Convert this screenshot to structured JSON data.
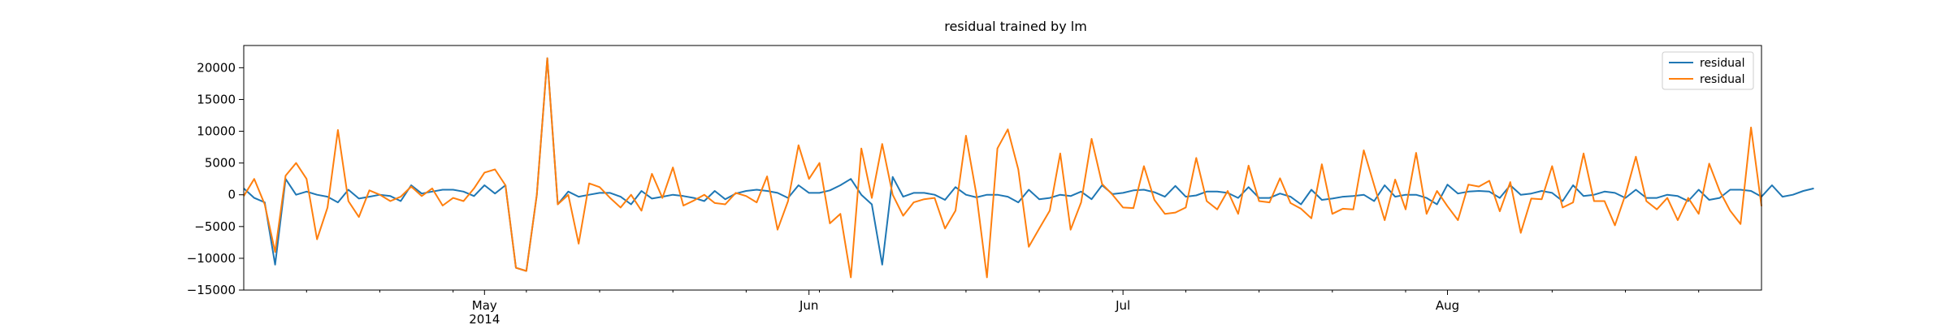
{
  "chart_data": {
    "type": "line",
    "title": "residual trained by lm",
    "xlabel": "",
    "ylabel": "",
    "xlim": [
      "2014-04-08",
      "2014-08-31"
    ],
    "ylim": [
      -15000,
      23500
    ],
    "yticks": [
      -15000,
      -10000,
      -5000,
      0,
      5000,
      10000,
      15000,
      20000
    ],
    "ytick_labels": [
      "−15000",
      "−10000",
      "−5000",
      "0",
      "5000",
      "10000",
      "15000",
      "20000"
    ],
    "xticks_major": [
      {
        "date": "2014-05-01",
        "label": "May",
        "sublabel": "2014"
      },
      {
        "date": "2014-06-01",
        "label": "Jun",
        "sublabel": ""
      },
      {
        "date": "2014-07-01",
        "label": "Jul",
        "sublabel": ""
      },
      {
        "date": "2014-08-01",
        "label": "Aug",
        "sublabel": ""
      }
    ],
    "grid": false,
    "legend": "top-right",
    "x_start": "2014-04-08",
    "x_step_days": 1,
    "series": [
      {
        "name": "residual",
        "color": "#1f77b4",
        "values": [
          1000,
          -500,
          -1200,
          -11000,
          2500,
          0,
          500,
          0,
          -300,
          -1200,
          800,
          -600,
          -300,
          0,
          -200,
          -1000,
          1500,
          200,
          500,
          800,
          800,
          500,
          -200,
          1500,
          200,
          1500,
          -11500,
          -12000,
          0,
          21500,
          -1500,
          500,
          -300,
          0,
          300,
          300,
          -300,
          -1500,
          600,
          -600,
          -300,
          0,
          -200,
          -500,
          -1000,
          600,
          -700,
          200,
          600,
          800,
          600,
          300,
          -500,
          1500,
          300,
          300,
          700,
          1500,
          2500,
          0,
          -1500,
          -11000,
          2800,
          -300,
          300,
          300,
          0,
          -800,
          1200,
          0,
          -400,
          0,
          0,
          -300,
          -1200,
          800,
          -700,
          -500,
          0,
          -200,
          500,
          -700,
          1500,
          100,
          300,
          700,
          800,
          400,
          -300,
          1400,
          -300,
          -100,
          500,
          500,
          300,
          -500,
          1200,
          -500,
          -500,
          200,
          -300,
          -1500,
          800,
          -800,
          -600,
          -300,
          -200,
          0,
          -1000,
          1500,
          -300,
          0,
          0,
          -500,
          -1500,
          1600,
          200,
          500,
          600,
          500,
          -500,
          1500,
          0,
          200,
          600,
          300,
          -1000,
          1500,
          -200,
          0,
          500,
          300,
          -500,
          800,
          -500,
          -500,
          0,
          -200,
          -1000,
          800,
          -800,
          -500,
          800,
          800,
          600,
          -300,
          1500,
          -300,
          0,
          600,
          1000
        ]
      },
      {
        "name": "residual",
        "color": "#ff7f0e",
        "values": [
          -200,
          2500,
          -1500,
          -9000,
          3000,
          5000,
          2500,
          -7000,
          -2000,
          10200,
          -1000,
          -3500,
          700,
          0,
          -1000,
          -300,
          1300,
          -200,
          1000,
          -1700,
          -500,
          -1000,
          1000,
          3500,
          4000,
          1500,
          -11500,
          -12000,
          0,
          21500,
          -1500,
          0,
          -7700,
          1800,
          1200,
          -500,
          -2000,
          0,
          -2500,
          3300,
          -500,
          4300,
          -1700,
          -900,
          0,
          -1300,
          -1500,
          300,
          -200,
          -1200,
          2900,
          -5500,
          -1000,
          7800,
          2500,
          5000,
          -4500,
          -3000,
          -13000,
          7300,
          -500,
          8000,
          0,
          -3300,
          -1200,
          -700,
          -500,
          -5300,
          -2500,
          9300,
          0,
          -13000,
          7300,
          10300,
          4000,
          -8200,
          -5300,
          -2500,
          6500,
          -5500,
          -1200,
          8800,
          1700,
          0,
          -2000,
          -2100,
          4500,
          -800,
          -3000,
          -2800,
          -2000,
          5800,
          -1000,
          -2300,
          600,
          -3000,
          4600,
          -1000,
          -1200,
          2600,
          -1300,
          -2200,
          -3700,
          4800,
          -3000,
          -2200,
          -2300,
          7000,
          1500,
          -4000,
          2400,
          -2300,
          6600,
          -3000,
          600,
          -1800,
          -4000,
          1600,
          1300,
          2200,
          -2600,
          2000,
          -6000,
          -600,
          -700,
          4500,
          -2000,
          -1200,
          6500,
          -1000,
          -1000,
          -4800,
          0,
          6000,
          -1000,
          -2300,
          -500,
          -4000,
          -500,
          -3000,
          4900,
          600,
          -2500,
          -4600,
          10600,
          -1800
        ]
      }
    ]
  }
}
